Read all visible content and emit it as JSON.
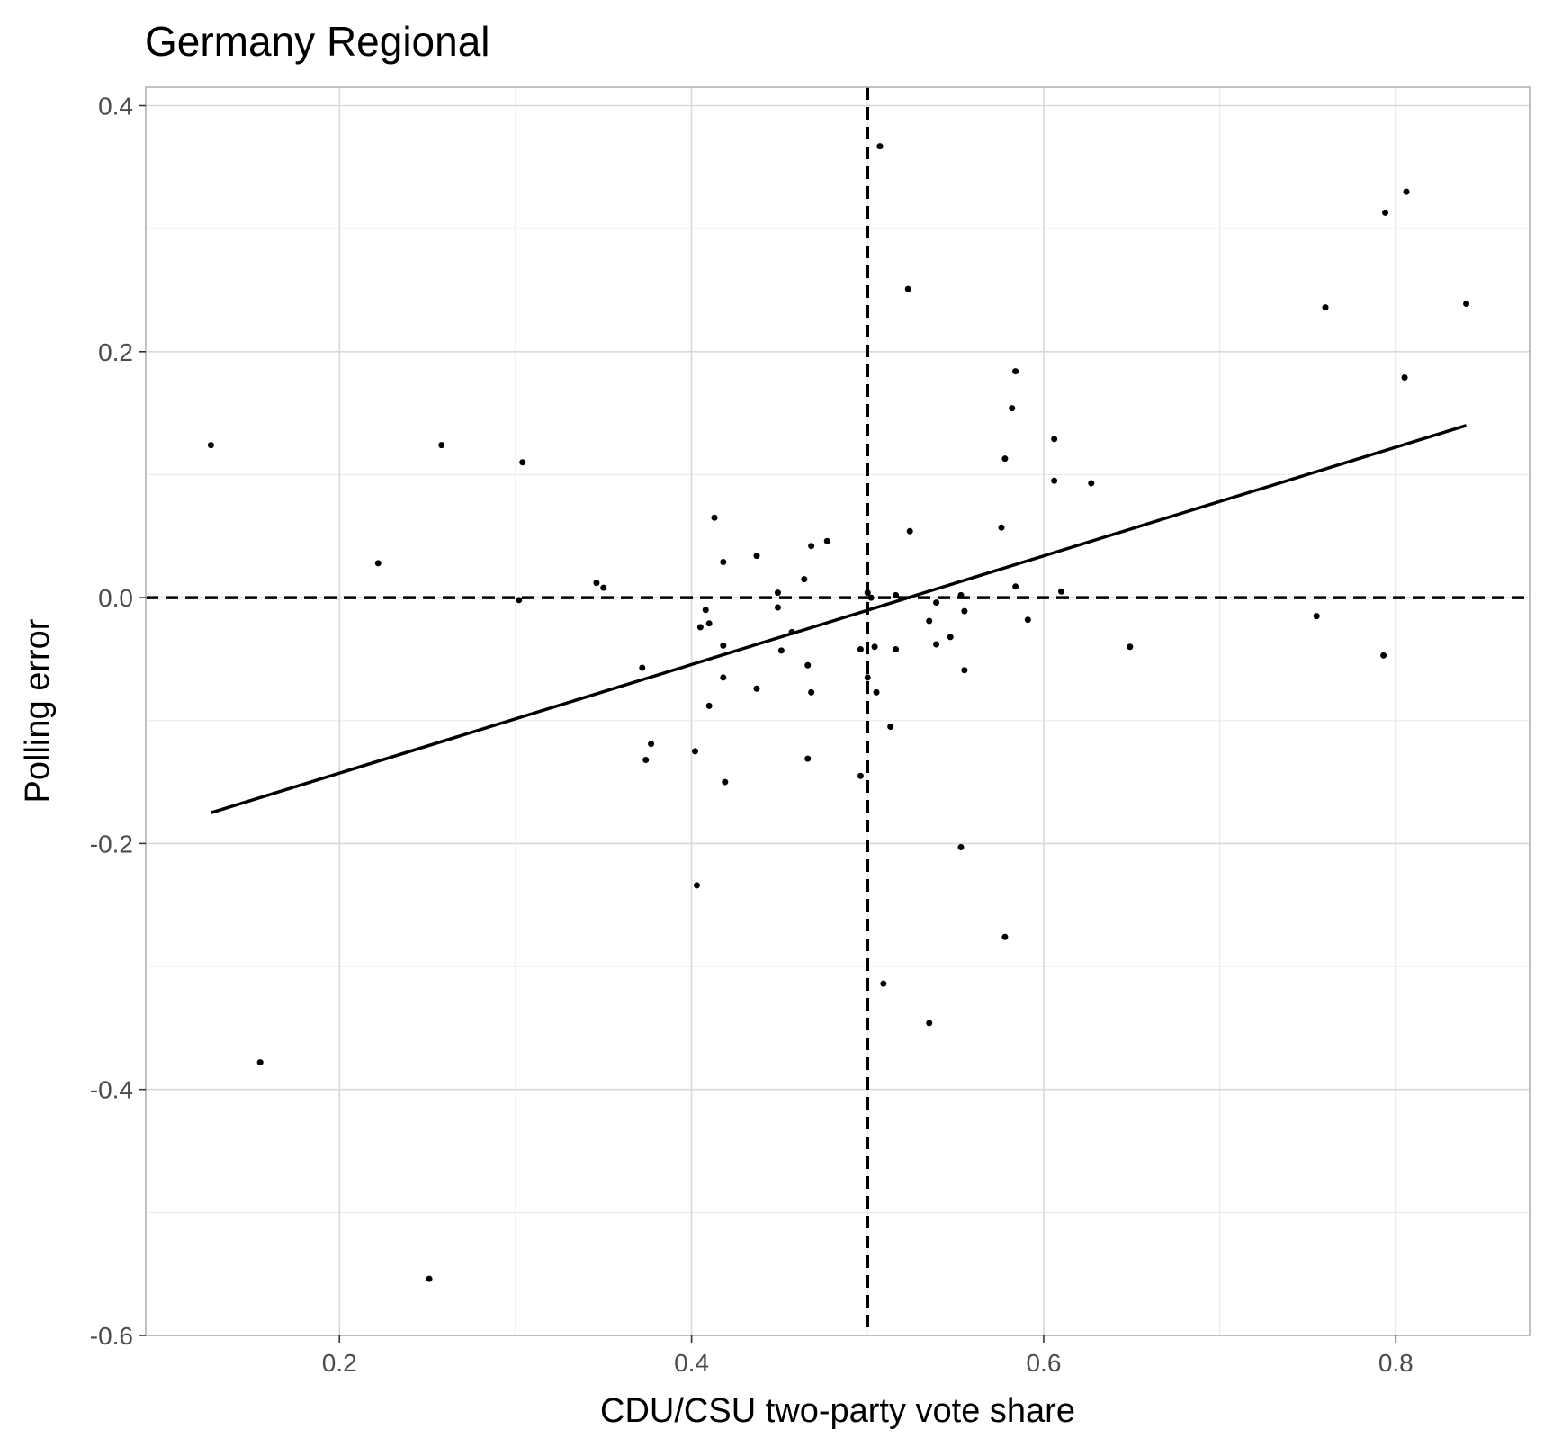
{
  "chart_data": {
    "type": "scatter",
    "title": "Germany Regional",
    "xlabel": "CDU/CSU two-party vote share",
    "ylabel": "Polling error",
    "xlim": [
      0.09,
      0.876
    ],
    "ylim": [
      -0.6,
      0.415
    ],
    "x_ticks": [
      0.2,
      0.4,
      0.6,
      0.8
    ],
    "x_tick_labels": [
      "0.2",
      "0.4",
      "0.6",
      "0.8"
    ],
    "y_ticks": [
      -0.6,
      -0.4,
      -0.2,
      0.0,
      0.2,
      0.4
    ],
    "y_tick_labels": [
      "-0.6",
      "-0.4",
      "-0.2",
      "0.0",
      "0.2",
      "0.4"
    ],
    "grid": true,
    "reference_lines": {
      "vertical_x": 0.5,
      "horizontal_y": 0.0,
      "style": "dashed"
    },
    "trend_line": {
      "x": [
        0.127,
        0.84
      ],
      "y": [
        -0.175,
        0.14
      ]
    },
    "points": [
      {
        "x": 0.127,
        "y": 0.124
      },
      {
        "x": 0.155,
        "y": -0.378
      },
      {
        "x": 0.222,
        "y": 0.028
      },
      {
        "x": 0.251,
        "y": -0.554
      },
      {
        "x": 0.258,
        "y": 0.124
      },
      {
        "x": 0.302,
        "y": -0.002
      },
      {
        "x": 0.304,
        "y": 0.11
      },
      {
        "x": 0.346,
        "y": 0.012
      },
      {
        "x": 0.35,
        "y": 0.008
      },
      {
        "x": 0.372,
        "y": -0.057
      },
      {
        "x": 0.374,
        "y": -0.132
      },
      {
        "x": 0.377,
        "y": -0.119
      },
      {
        "x": 0.402,
        "y": -0.125
      },
      {
        "x": 0.403,
        "y": -0.234
      },
      {
        "x": 0.405,
        "y": -0.024
      },
      {
        "x": 0.408,
        "y": -0.01
      },
      {
        "x": 0.41,
        "y": -0.021
      },
      {
        "x": 0.41,
        "y": -0.088
      },
      {
        "x": 0.413,
        "y": 0.065
      },
      {
        "x": 0.418,
        "y": 0.029
      },
      {
        "x": 0.418,
        "y": -0.039
      },
      {
        "x": 0.418,
        "y": -0.065
      },
      {
        "x": 0.419,
        "y": -0.15
      },
      {
        "x": 0.437,
        "y": 0.034
      },
      {
        "x": 0.437,
        "y": -0.074
      },
      {
        "x": 0.449,
        "y": 0.004
      },
      {
        "x": 0.449,
        "y": -0.008
      },
      {
        "x": 0.451,
        "y": -0.043
      },
      {
        "x": 0.457,
        "y": -0.028
      },
      {
        "x": 0.464,
        "y": 0.015
      },
      {
        "x": 0.466,
        "y": -0.055
      },
      {
        "x": 0.466,
        "y": -0.131
      },
      {
        "x": 0.468,
        "y": 0.042
      },
      {
        "x": 0.468,
        "y": -0.077
      },
      {
        "x": 0.477,
        "y": 0.046
      },
      {
        "x": 0.496,
        "y": -0.042
      },
      {
        "x": 0.496,
        "y": -0.145
      },
      {
        "x": 0.5,
        "y": 0.004
      },
      {
        "x": 0.5,
        "y": -0.065
      },
      {
        "x": 0.502,
        "y": 0.0
      },
      {
        "x": 0.504,
        "y": -0.04
      },
      {
        "x": 0.505,
        "y": -0.077
      },
      {
        "x": 0.507,
        "y": 0.367
      },
      {
        "x": 0.509,
        "y": -0.314
      },
      {
        "x": 0.513,
        "y": -0.105
      },
      {
        "x": 0.516,
        "y": 0.002
      },
      {
        "x": 0.516,
        "y": -0.042
      },
      {
        "x": 0.523,
        "y": 0.251
      },
      {
        "x": 0.524,
        "y": 0.054
      },
      {
        "x": 0.535,
        "y": -0.019
      },
      {
        "x": 0.535,
        "y": -0.346
      },
      {
        "x": 0.539,
        "y": -0.004
      },
      {
        "x": 0.539,
        "y": -0.038
      },
      {
        "x": 0.547,
        "y": -0.032
      },
      {
        "x": 0.553,
        "y": 0.002
      },
      {
        "x": 0.553,
        "y": -0.203
      },
      {
        "x": 0.555,
        "y": -0.011
      },
      {
        "x": 0.555,
        "y": -0.059
      },
      {
        "x": 0.576,
        "y": 0.057
      },
      {
        "x": 0.578,
        "y": 0.113
      },
      {
        "x": 0.578,
        "y": -0.276
      },
      {
        "x": 0.582,
        "y": 0.154
      },
      {
        "x": 0.584,
        "y": 0.184
      },
      {
        "x": 0.584,
        "y": 0.009
      },
      {
        "x": 0.591,
        "y": -0.018
      },
      {
        "x": 0.606,
        "y": 0.129
      },
      {
        "x": 0.606,
        "y": 0.095
      },
      {
        "x": 0.61,
        "y": 0.005
      },
      {
        "x": 0.627,
        "y": 0.093
      },
      {
        "x": 0.649,
        "y": -0.04
      },
      {
        "x": 0.755,
        "y": -0.015
      },
      {
        "x": 0.76,
        "y": 0.236
      },
      {
        "x": 0.793,
        "y": -0.047
      },
      {
        "x": 0.794,
        "y": 0.313
      },
      {
        "x": 0.805,
        "y": 0.179
      },
      {
        "x": 0.806,
        "y": 0.33
      },
      {
        "x": 0.84,
        "y": 0.239
      }
    ],
    "colors": {
      "points": "#000000",
      "line": "#000000",
      "grid_major": "#d9d9d9",
      "grid_minor": "#ebebeb",
      "panel_border": "#b3b3b3",
      "tick_text": "#4d4d4d"
    }
  }
}
